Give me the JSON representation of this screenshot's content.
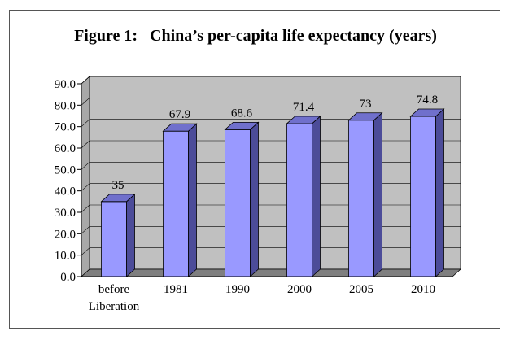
{
  "chart_data": {
    "type": "bar",
    "title": "Figure 1:   China’s per-capita life expectancy (years)",
    "categories": [
      "before Liberation",
      "1981",
      "1990",
      "2000",
      "2005",
      "2010"
    ],
    "category_lines": [
      [
        "before",
        "Liberation"
      ],
      [
        "1981"
      ],
      [
        "1990"
      ],
      [
        "2000"
      ],
      [
        "2005"
      ],
      [
        "2010"
      ]
    ],
    "values": [
      35,
      67.9,
      68.6,
      71.4,
      73,
      74.8
    ],
    "data_labels": [
      "35",
      "67.9",
      "68.6",
      "71.4",
      "73",
      "74.8"
    ],
    "y_ticks": [
      "0.0",
      "10.0",
      "20.0",
      "30.0",
      "40.0",
      "50.0",
      "60.0",
      "70.0",
      "80.0",
      "90.0"
    ],
    "ylim": [
      0,
      90
    ],
    "xlabel": "",
    "ylabel": "",
    "grid": true,
    "three_d": true,
    "colors": {
      "bar_front": "#9999ff",
      "bar_side": "#4c4c99",
      "bar_top": "#7070cc",
      "wall": "#c0c0c0",
      "floor": "#7f7f7f",
      "gridline": "#000000"
    }
  }
}
